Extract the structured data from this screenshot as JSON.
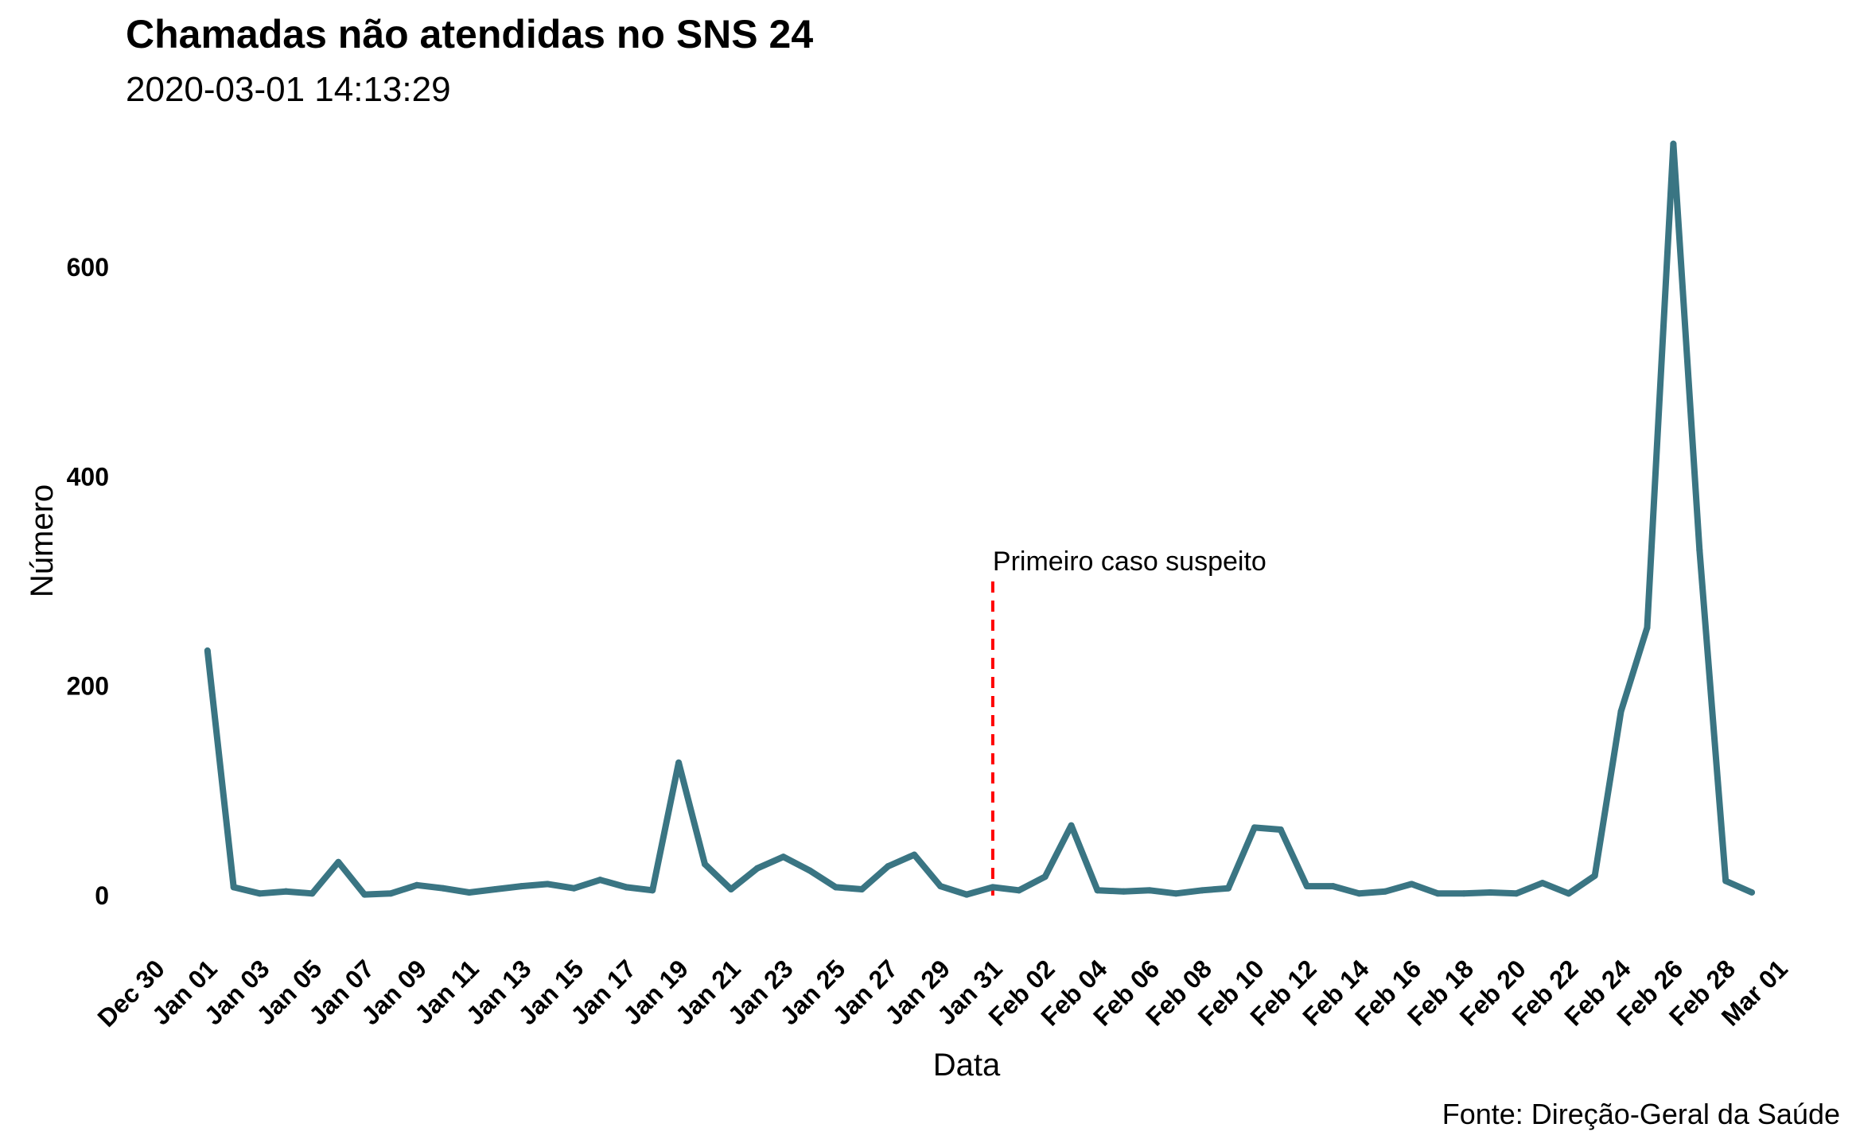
{
  "title": "Chamadas não atendidas no SNS 24",
  "subtitle": "2020-03-01 14:13:29",
  "caption": "Fonte: Direção-Geral da Saúde",
  "chart_data": {
    "type": "line",
    "title": "Chamadas não atendidas no SNS 24",
    "subtitle": "2020-03-01 14:13:29",
    "xlabel": "Data",
    "ylabel": "Número",
    "x_start": "2020-01-01",
    "x_end": "2020-02-29",
    "xlim": [
      "2019-12-30",
      "2020-03-01"
    ],
    "ylim": [
      -35,
      730
    ],
    "y_ticks": [
      0,
      200,
      400,
      600
    ],
    "x_tick_labels": [
      "Dec 30",
      "Jan 01",
      "Jan 03",
      "Jan 05",
      "Jan 07",
      "Jan 09",
      "Jan 11",
      "Jan 13",
      "Jan 15",
      "Jan 17",
      "Jan 19",
      "Jan 21",
      "Jan 23",
      "Jan 25",
      "Jan 27",
      "Jan 29",
      "Jan 31",
      "Feb 02",
      "Feb 04",
      "Feb 06",
      "Feb 08",
      "Feb 10",
      "Feb 12",
      "Feb 14",
      "Feb 16",
      "Feb 18",
      "Feb 20",
      "Feb 22",
      "Feb 24",
      "Feb 26",
      "Feb 28",
      "Mar 01"
    ],
    "grid": false,
    "legend": "none",
    "series": [
      {
        "color": "#3a7583",
        "values": [
          234,
          8,
          2,
          4,
          2,
          32,
          1,
          2,
          10,
          7,
          3,
          6,
          9,
          11,
          7,
          15,
          8,
          5,
          127,
          30,
          6,
          26,
          37,
          24,
          8,
          6,
          28,
          39,
          9,
          1,
          8,
          5,
          18,
          67,
          5,
          4,
          5,
          2,
          5,
          7,
          65,
          63,
          9,
          9,
          2,
          4,
          11,
          2,
          2,
          3,
          2,
          12,
          2,
          19,
          176,
          256,
          718,
          330,
          14,
          3
        ]
      }
    ],
    "annotations": [
      {
        "text": "Primeiro caso suspeito",
        "x": "2020-01-31",
        "line_top": 300,
        "line_color": "#ff0000",
        "line_style": "dashed"
      }
    ]
  }
}
